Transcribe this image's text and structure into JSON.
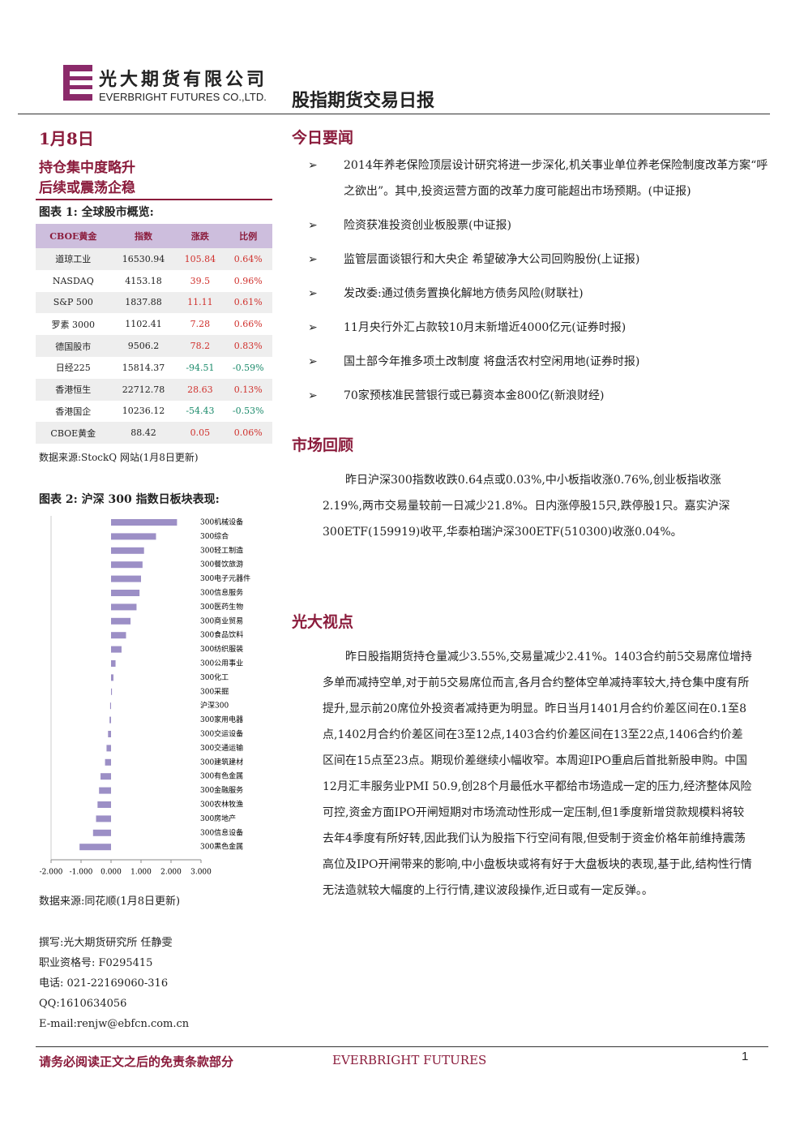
{
  "header": {
    "company_cn": "光大期货有限公司",
    "company_en": "EVERBRIGHT FUTURES CO.,LTD.",
    "report_title": "股指期货交易日报"
  },
  "sidebar": {
    "date": "1月8日",
    "headline": [
      "持仓集中度略升",
      "后续或震荡企稳"
    ],
    "table1": {
      "title": "图表 1: 全球股市概览:",
      "columns": [
        "CBOE黄金",
        "指数",
        "涨跌",
        "比例"
      ],
      "rows": [
        [
          "道琼工业",
          "16530.94",
          "105.84",
          "0.64%"
        ],
        [
          "NASDAQ",
          "4153.18",
          "39.5",
          "0.96%"
        ],
        [
          "S&P 500",
          "1837.88",
          "11.11",
          "0.61%"
        ],
        [
          "罗素 3000",
          "1102.41",
          "7.28",
          "0.66%"
        ],
        [
          "德国股市",
          "9506.2",
          "78.2",
          "0.83%"
        ],
        [
          "日经225",
          "15814.37",
          "-94.51",
          "-0.59%"
        ],
        [
          "香港恒生",
          "22712.78",
          "28.63",
          "0.13%"
        ],
        [
          "香港国企",
          "10236.12",
          "-54.43",
          "-0.53%"
        ],
        [
          "CBOE黄金",
          "88.42",
          "0.05",
          "0.06%"
        ]
      ]
    },
    "table1_source": "数据来源:StockQ 网站(1月8日更新)",
    "chart_title": "图表 2: 沪深 300 指数日板块表现:",
    "chart_source": "数据来源:同花顺(1月8日更新)",
    "contact": [
      "撰写:光大期货研究所 任静雯",
      "职业资格号: F0295415",
      "电话: 021-22169060-316",
      "QQ:1610634056",
      "E-mail:renjw@ebfcn.com.cn"
    ]
  },
  "chart_data": {
    "type": "bar",
    "orientation": "horizontal",
    "color": "#9c8fc6",
    "categories": [
      "300机械设备",
      "300综合",
      "300轻工制造",
      "300餐饮旅游",
      "300电子元器件",
      "300信息服务",
      "300医药生物",
      "300商业贸易",
      "300食品饮料",
      "300纺织服装",
      "300公用事业",
      "300化工",
      "300采掘",
      "沪深300",
      "300家用电器",
      "300交运设备",
      "300交通运输",
      "300建筑建材",
      "300有色金属",
      "300金融服务",
      "300农林牧渔",
      "300房地产",
      "300信息设备",
      "300黑色金属"
    ],
    "values": [
      2.2,
      1.5,
      1.1,
      1.05,
      1.0,
      0.95,
      0.85,
      0.65,
      0.5,
      0.35,
      0.15,
      0.08,
      0.03,
      -0.03,
      -0.05,
      -0.1,
      -0.15,
      -0.2,
      -0.35,
      -0.4,
      -0.45,
      -0.5,
      -0.6,
      -1.05
    ],
    "xlim": [
      -2,
      3
    ],
    "xticks": [
      {
        "value": -2,
        "label": "-2.000"
      },
      {
        "value": -1,
        "label": "-1.000"
      },
      {
        "value": 0,
        "label": "0.000"
      },
      {
        "value": 1,
        "label": "1.000"
      },
      {
        "value": 2,
        "label": "2.000"
      },
      {
        "value": 3,
        "label": "3.000"
      }
    ]
  },
  "news": {
    "title": "今日要闻",
    "items": [
      "2014年养老保险顶层设计研究将进一步深化,机关事业单位养老保险制度改革方案“呼之欲出”。其中,投资运营方面的改革力度可能超出市场预期。(中证报)",
      "险资获准投资创业板股票(中证报)",
      "监管层面谈银行和大央企 希望破净大公司回购股份(上证报)",
      "发改委:通过债务置换化解地方债务风险(财联社)",
      "11月央行外汇占款较10月末新增近4000亿元(证券时报)",
      "国土部今年推多项土改制度 将盘活农村空闲用地(证券时报)",
      "70家预核准民营银行或已募资本金800亿(新浪财经)"
    ]
  },
  "review": {
    "title": "市场回顾",
    "text": "昨日沪深300指数收跌0.64点或0.03%,中小板指收涨0.76%,创业板指收涨2.19%,两市交易量较前一日减少21.8%。日内涨停股15只,跌停股1只。嘉实沪深300ETF(159919)收平,华泰柏瑞沪深300ETF(510300)收涨0.04%。"
  },
  "view": {
    "title": "光大视点",
    "text": "昨日股指期货持仓量减少3.55%,交易量减少2.41%。1403合约前5交易席位增持多单而减持空单,对于前5交易席位而言,各月合约整体空单减持率较大,持仓集中度有所提升,显示前20席位外投资者减持更为明显。昨日当月1401月合约价差区间在0.1至8点,1402月合约价差区间在3至12点,1403合约价差区间在13至22点,1406合约价差区间在15点至23点。期现价差继续小幅收窄。本周迎IPO重启后首批新股申购。中国12月汇丰服务业PMI 50.9,创28个月最低水平都给市场造成一定的压力,经济整体风险可控,资金方面IPO开闸短期对市场流动性形成一定压制,但1季度新增贷款规模料将较去年4季度有所好转,因此我们认为股指下行空间有限,但受制于资金价格年前维持震荡高位及IPO开闸带来的影响,中小盘板块或将有好于大盘板块的表现,基于此,结构性行情无法造就较大幅度的上行行情,建议波段操作,近日或有一定反弹。。"
  },
  "footer": {
    "disclaimer": "请务必阅读正文之后的免责条款部分",
    "brand": "EVERBRIGHT FUTURES",
    "page": "1"
  }
}
